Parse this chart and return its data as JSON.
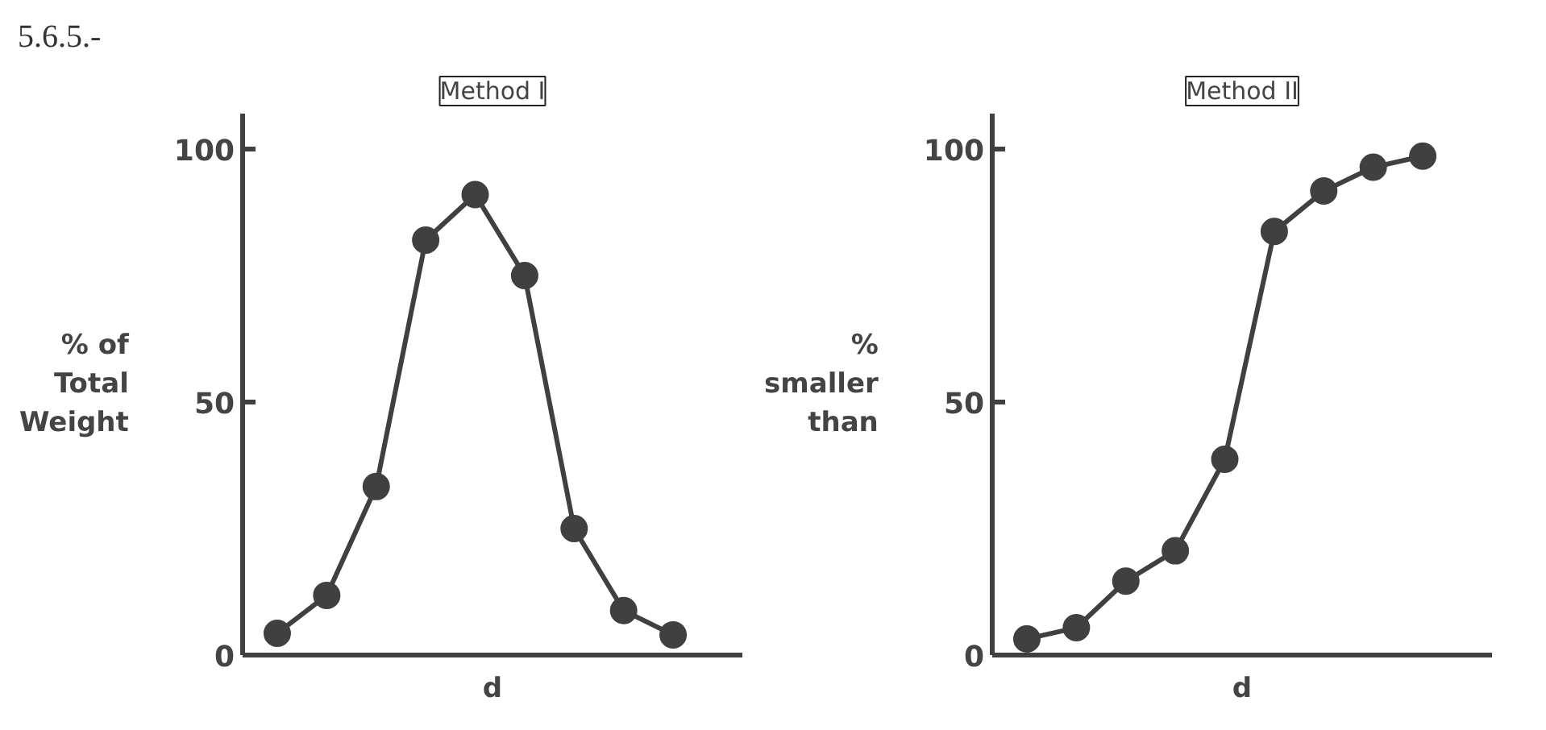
{
  "chart_data": [
    {
      "type": "line",
      "title": "Method I",
      "annotations": [
        "5.6.5.-"
      ],
      "xlabel": "d",
      "ylabel": "% of\nTotal\nWeight",
      "categories": [
        null,
        null,
        null,
        null,
        null,
        null,
        null,
        null,
        null
      ],
      "series": [
        {
          "color": "#404040",
          "values": [
            4.3,
            11.8,
            33.3,
            82,
            91,
            75,
            25,
            8.8,
            4
          ]
        }
      ],
      "ylim": [
        0,
        107
      ],
      "yticks": [
        0,
        50,
        100
      ],
      "marker": "circle",
      "line_style": "solid",
      "grid": false
    },
    {
      "type": "line",
      "title": "Method II",
      "xlabel": "d",
      "ylabel": "%\nsmaller\nthan",
      "categories": [
        null,
        null,
        null,
        null,
        null,
        null,
        null,
        null,
        null
      ],
      "series": [
        {
          "color": "#404040",
          "values": [
            3.2,
            5.4,
            14.6,
            20.6,
            38.7,
            83.7,
            91.7,
            96.4,
            98.6
          ]
        }
      ],
      "ylim": [
        0,
        107
      ],
      "yticks": [
        0,
        50,
        100
      ],
      "marker": "circle",
      "line_style": "solid",
      "grid": false
    }
  ]
}
